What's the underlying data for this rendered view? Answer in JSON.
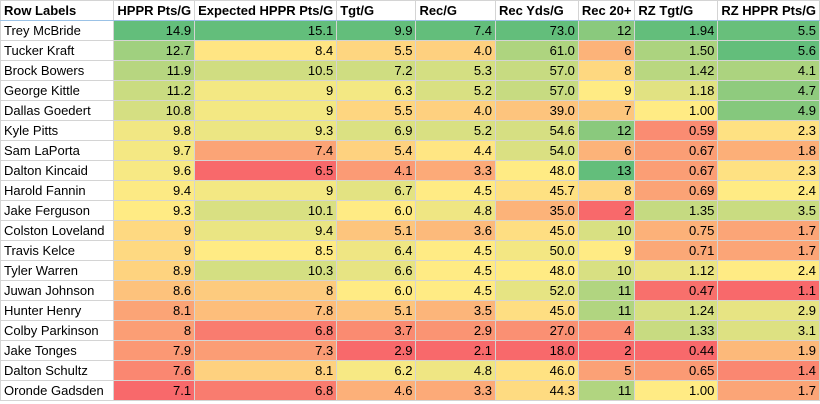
{
  "colors": {
    "low": "#f8696b",
    "mid": "#ffeb84",
    "high": "#63be7b"
  },
  "table": {
    "columns": [
      "Row Labels",
      "HPPR Pts/G",
      "Expected HPPR Pts/G",
      "Tgt/G",
      "Rec/G",
      "Rec Yds/G",
      "Rec 20+",
      "RZ Tgt/G",
      "RZ HPPR Pts/G"
    ],
    "rows": [
      [
        "Trey McBride",
        "14.9",
        "15.1",
        "9.9",
        "7.4",
        "73.0",
        "12",
        "1.94",
        "5.5"
      ],
      [
        "Tucker Kraft",
        "12.7",
        "8.4",
        "5.5",
        "4.0",
        "61.0",
        "6",
        "1.50",
        "5.6"
      ],
      [
        "Brock Bowers",
        "11.9",
        "10.5",
        "7.2",
        "5.3",
        "57.0",
        "8",
        "1.42",
        "4.1"
      ],
      [
        "George Kittle",
        "11.2",
        "9",
        "6.3",
        "5.2",
        "57.0",
        "9",
        "1.18",
        "4.7"
      ],
      [
        "Dallas Goedert",
        "10.8",
        "9",
        "5.5",
        "4.0",
        "39.0",
        "7",
        "1.00",
        "4.9"
      ],
      [
        "Kyle Pitts",
        "9.8",
        "9.3",
        "6.9",
        "5.2",
        "54.6",
        "12",
        "0.59",
        "2.3"
      ],
      [
        "Sam LaPorta",
        "9.7",
        "7.4",
        "5.4",
        "4.4",
        "54.0",
        "6",
        "0.67",
        "1.8"
      ],
      [
        "Dalton Kincaid",
        "9.6",
        "6.5",
        "4.1",
        "3.3",
        "48.0",
        "13",
        "0.67",
        "2.3"
      ],
      [
        "Harold Fannin",
        "9.4",
        "9",
        "6.7",
        "4.5",
        "45.7",
        "8",
        "0.69",
        "2.4"
      ],
      [
        "Jake Ferguson",
        "9.3",
        "10.1",
        "6.0",
        "4.8",
        "35.0",
        "2",
        "1.35",
        "3.5"
      ],
      [
        "Colston Loveland",
        "9",
        "9.4",
        "5.1",
        "3.6",
        "45.0",
        "10",
        "0.75",
        "1.7"
      ],
      [
        "Travis Kelce",
        "9",
        "8.5",
        "6.4",
        "4.5",
        "50.0",
        "9",
        "0.71",
        "1.7"
      ],
      [
        "Tyler Warren",
        "8.9",
        "10.3",
        "6.6",
        "4.5",
        "48.0",
        "10",
        "1.12",
        "2.4"
      ],
      [
        "Juwan Johnson",
        "8.6",
        "8",
        "6.0",
        "4.5",
        "52.0",
        "11",
        "0.47",
        "1.1"
      ],
      [
        "Hunter Henry",
        "8.1",
        "7.8",
        "5.1",
        "3.5",
        "45.0",
        "11",
        "1.24",
        "2.9"
      ],
      [
        "Colby Parkinson",
        "8",
        "6.8",
        "3.7",
        "2.9",
        "27.0",
        "4",
        "1.33",
        "3.1"
      ],
      [
        "Jake Tonges",
        "7.9",
        "7.3",
        "2.9",
        "2.1",
        "18.0",
        "2",
        "0.44",
        "1.9"
      ],
      [
        "Dalton Schultz",
        "7.6",
        "8.1",
        "6.2",
        "4.8",
        "46.0",
        "5",
        "0.65",
        "1.4"
      ],
      [
        "Oronde Gadsden",
        "7.1",
        "6.8",
        "4.6",
        "3.3",
        "44.3",
        "11",
        "1.00",
        "1.7"
      ]
    ]
  }
}
